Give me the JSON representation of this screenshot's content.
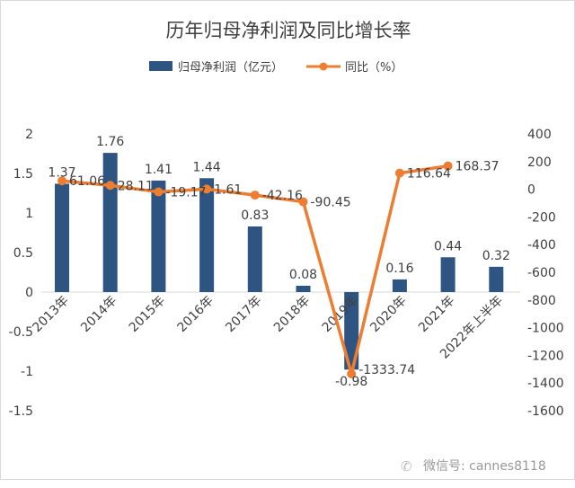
{
  "chart_data": {
    "type": "bar+line",
    "title": "历年归母净利润及同比增长率",
    "categories": [
      "2013年",
      "2014年",
      "2015年",
      "2016年",
      "2017年",
      "2018年",
      "2019年",
      "2020年",
      "2021年",
      "2022年上半年"
    ],
    "series": [
      {
        "name": "归母净利润（亿元）",
        "type": "bar",
        "axis": "left",
        "color": "#2e5582",
        "values": [
          1.37,
          1.76,
          1.41,
          1.44,
          0.83,
          0.08,
          -0.98,
          0.16,
          0.44,
          0.32
        ],
        "labels": [
          "1.37",
          "1.76",
          "1.41",
          "1.44",
          "0.83",
          "0.08",
          "-0.98",
          "0.16",
          "0.44",
          "0.32"
        ]
      },
      {
        "name": "同比（%）",
        "type": "line",
        "axis": "right",
        "color": "#ed7d31",
        "values": [
          61.06,
          28.11,
          -19.17,
          1.61,
          -42.16,
          -90.45,
          -1333.74,
          116.64,
          168.37,
          null
        ],
        "labels": [
          "61.06",
          "28.11",
          "-19.17",
          "1.61",
          "-42.16",
          "-90.45",
          "-1333.74",
          "116.64",
          "168.37",
          null
        ]
      }
    ],
    "left_axis": {
      "range": [
        -1.5,
        2
      ],
      "ticks": [
        "2",
        "1.5",
        "1",
        "0.5",
        "0",
        "-0.5",
        "-1",
        "-1.5"
      ],
      "tick_values": [
        2,
        1.5,
        1,
        0.5,
        0,
        -0.5,
        -1,
        -1.5
      ]
    },
    "right_axis": {
      "range": [
        -1600,
        400
      ],
      "ticks": [
        "400",
        "200",
        "0",
        "-200",
        "-400",
        "-600",
        "-800",
        "-1000",
        "-1200",
        "-1400",
        "-1600"
      ],
      "tick_values": [
        400,
        200,
        0,
        -200,
        -400,
        -600,
        -800,
        -1000,
        -1200,
        -1400,
        -1600
      ]
    },
    "legend": "top",
    "grid": false
  },
  "watermark": "微信号: cannes8118"
}
